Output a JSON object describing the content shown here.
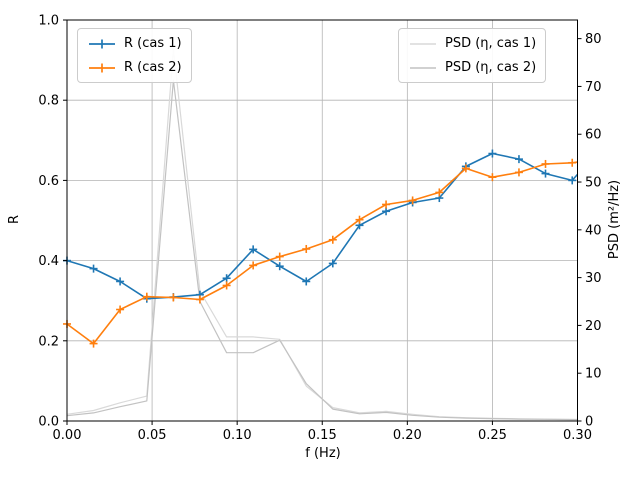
{
  "figure": {
    "background": "#ffffff"
  },
  "axes": {
    "x": {
      "label": "f (Hz)",
      "min": 0.0,
      "max": 0.3,
      "tick_values": [
        0.0,
        0.05,
        0.1,
        0.15,
        0.2,
        0.25,
        0.3
      ],
      "tick_labels": [
        "0.00",
        "0.05",
        "0.10",
        "0.15",
        "0.20",
        "0.25",
        "0.30"
      ]
    },
    "y_left": {
      "label": "R",
      "min": 0.0,
      "max": 1.0,
      "tick_values": [
        0.0,
        0.2,
        0.4,
        0.6,
        0.8,
        1.0
      ],
      "tick_labels": [
        "0.0",
        "0.2",
        "0.4",
        "0.6",
        "0.8",
        "1.0"
      ]
    },
    "y_right": {
      "label": "PSD (m²/Hz)",
      "min": 0,
      "max": 83.9,
      "tick_values": [
        0,
        10,
        20,
        30,
        40,
        50,
        60,
        70,
        80
      ],
      "tick_labels": [
        "0",
        "10",
        "20",
        "30",
        "40",
        "50",
        "60",
        "70",
        "80"
      ]
    }
  },
  "legend_left": {
    "items": [
      {
        "label": "R (cas 1)",
        "color": "#1f77b4",
        "marker": "plus"
      },
      {
        "label": "R (cas 2)",
        "color": "#ff7f0e",
        "marker": "plus"
      }
    ]
  },
  "legend_right": {
    "items": [
      {
        "label": "PSD (η, cas 1)",
        "color": "#d9d9d9",
        "marker": "none"
      },
      {
        "label": "PSD (η, cas 2)",
        "color": "#c2c2c2",
        "marker": "none"
      }
    ]
  },
  "colors": {
    "grid": "#b4b4b4",
    "spine": "#000000",
    "blue": "#1f77b4",
    "orange": "#ff7f0e"
  },
  "chart_data": {
    "type": "line",
    "title": "",
    "xlabel": "f (Hz)",
    "ylabel_left": "R",
    "ylabel_right": "PSD (m²/Hz)",
    "xlim": [
      0.0,
      0.3
    ],
    "ylim_left": [
      0.0,
      1.0
    ],
    "ylim_right": [
      0,
      83.9
    ],
    "grid": true,
    "legend_positions": [
      "upper left",
      "upper right"
    ],
    "x": [
      0.0,
      0.0156,
      0.0312,
      0.0469,
      0.0625,
      0.0781,
      0.0938,
      0.1094,
      0.125,
      0.1406,
      0.1562,
      0.1719,
      0.1875,
      0.2031,
      0.2188,
      0.2344,
      0.25,
      0.2656,
      0.2812,
      0.2969,
      0.3
    ],
    "n_marker_points": 20,
    "series": [
      {
        "name": "R (cas 1)",
        "axis": "left",
        "color": "#1f77b4",
        "marker": "plus",
        "values": [
          0.4,
          0.38,
          0.348,
          0.305,
          0.309,
          0.315,
          0.356,
          0.428,
          0.386,
          0.348,
          0.393,
          0.488,
          0.523,
          0.545,
          0.556,
          0.635,
          0.667,
          0.653,
          0.617,
          0.6,
          0.615
        ]
      },
      {
        "name": "R (cas 2)",
        "axis": "left",
        "color": "#ff7f0e",
        "marker": "plus",
        "values": [
          0.242,
          0.193,
          0.278,
          0.31,
          0.308,
          0.303,
          0.338,
          0.388,
          0.41,
          0.429,
          0.452,
          0.502,
          0.54,
          0.55,
          0.57,
          0.63,
          0.608,
          0.62,
          0.641,
          0.644,
          0.646
        ]
      },
      {
        "name": "PSD (η, cas 1)",
        "axis": "right",
        "color": "#d9d9d9",
        "marker": "none",
        "values": [
          1.4,
          2.2,
          3.8,
          5.2,
          77.8,
          27.2,
          17.6,
          17.6,
          17.1,
          7.3,
          2.8,
          1.7,
          2.0,
          1.4,
          0.9,
          0.7,
          0.55,
          0.45,
          0.4,
          0.35,
          0.35
        ]
      },
      {
        "name": "PSD (η, cas 2)",
        "axis": "right",
        "color": "#c2c2c2",
        "marker": "none",
        "values": [
          1.1,
          1.7,
          3.0,
          4.2,
          71.3,
          25.0,
          14.3,
          14.3,
          16.9,
          7.8,
          2.5,
          1.5,
          1.8,
          1.2,
          0.8,
          0.6,
          0.5,
          0.4,
          0.35,
          0.3,
          0.3
        ]
      }
    ]
  }
}
